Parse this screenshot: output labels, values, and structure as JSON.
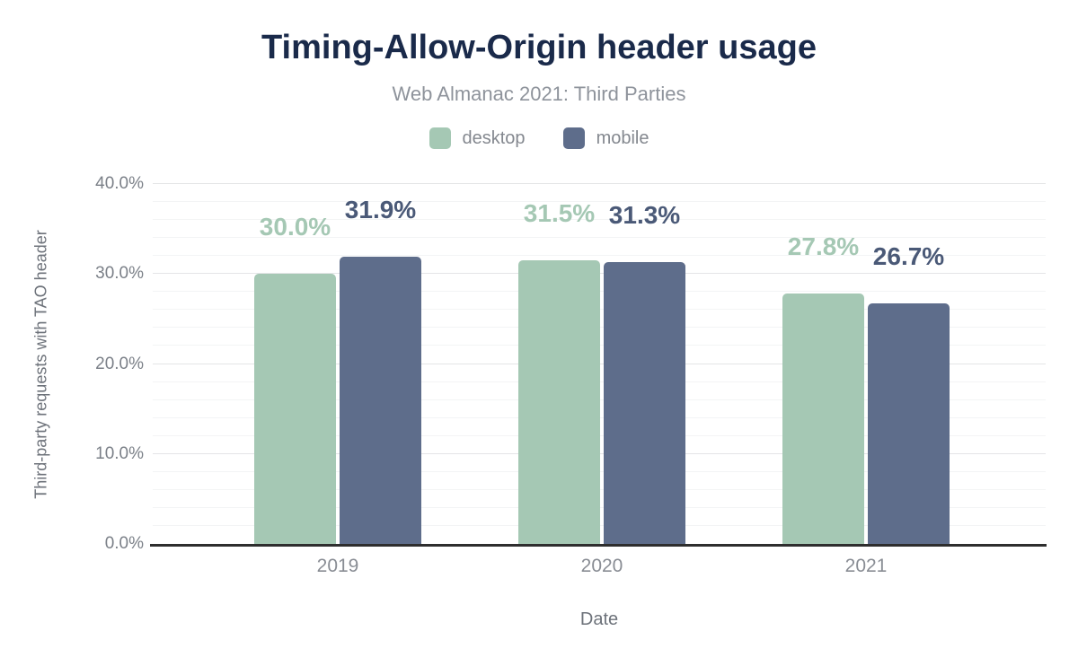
{
  "chart_data": {
    "type": "bar",
    "title": "Timing-Allow-Origin header usage",
    "subtitle": "Web Almanac 2021: Third Parties",
    "xlabel": "Date",
    "ylabel": "Third-party requests with TAO header",
    "categories": [
      "2019",
      "2020",
      "2021"
    ],
    "series": [
      {
        "name": "desktop",
        "color": "#a5c8b4",
        "label_color": "#a5c8b4",
        "values": [
          30.0,
          31.5,
          27.8
        ],
        "labels": [
          "30.0%",
          "31.5%",
          "27.8%"
        ]
      },
      {
        "name": "mobile",
        "color": "#5e6d8b",
        "label_color": "#4a5977",
        "values": [
          31.9,
          31.3,
          26.7
        ],
        "labels": [
          "31.9%",
          "31.3%",
          "26.7%"
        ]
      }
    ],
    "ylim": [
      0,
      40
    ],
    "yticks": [
      {
        "label": "0.0%",
        "value": 0
      },
      {
        "label": "10.0%",
        "value": 10
      },
      {
        "label": "20.0%",
        "value": 20
      },
      {
        "label": "30.0%",
        "value": 30
      },
      {
        "label": "40.0%",
        "value": 40
      }
    ],
    "grid": {
      "major_step": 10,
      "minor_step": 2,
      "on": true
    },
    "legend_position": "top",
    "colors": {
      "title_text": "#1a2a4a",
      "subtitle_text": "#8e939b",
      "axis_tick_text": "#7b8088",
      "axis_title_text": "#6d727a",
      "axis_line": "#2e2e2e",
      "grid_major": "#e4e5e7",
      "grid_minor": "#f3f4f5",
      "background": "#ffffff"
    }
  }
}
